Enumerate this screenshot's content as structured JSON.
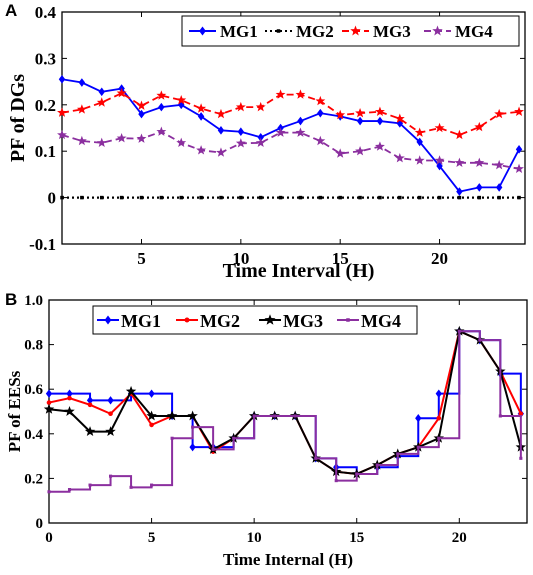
{
  "chart_data": [
    {
      "type": "line",
      "panel_label": "A",
      "xlabel": "Time Interval (H)",
      "ylabel": "PF of DGs",
      "xlim": [
        1,
        24.3
      ],
      "ylim": [
        -0.1,
        0.4
      ],
      "xticks": [
        5,
        10,
        15,
        20
      ],
      "yticks": [
        -0.1,
        0,
        0.1,
        0.2,
        0.3,
        0.4
      ],
      "grid": false,
      "legend_position": "top-right",
      "x": [
        1,
        2,
        3,
        4,
        5,
        6,
        7,
        8,
        9,
        10,
        11,
        12,
        13,
        14,
        15,
        16,
        17,
        18,
        19,
        20,
        21,
        22,
        23,
        24
      ],
      "series": [
        {
          "name": "MG1",
          "color": "#0000ff",
          "marker": "diamond",
          "dash": "solid",
          "values": [
            0.255,
            0.248,
            0.228,
            0.235,
            0.18,
            0.195,
            0.2,
            0.175,
            0.145,
            0.142,
            0.13,
            0.15,
            0.165,
            0.182,
            0.175,
            0.165,
            0.165,
            0.16,
            0.12,
            0.068,
            0.013,
            0.022,
            0.022,
            0.104
          ]
        },
        {
          "name": "MG2",
          "color": "#000000",
          "marker": "square",
          "dash": "dot",
          "values": [
            0,
            0,
            0,
            0,
            0,
            0,
            0,
            0,
            0,
            0,
            0,
            0,
            0,
            0,
            0,
            0,
            0,
            0,
            0,
            0,
            0,
            0,
            0,
            0
          ]
        },
        {
          "name": "MG3",
          "color": "#ff0000",
          "marker": "star",
          "dash": "dash",
          "values": [
            0.183,
            0.19,
            0.205,
            0.225,
            0.198,
            0.22,
            0.21,
            0.192,
            0.18,
            0.195,
            0.195,
            0.222,
            0.222,
            0.208,
            0.178,
            0.182,
            0.185,
            0.17,
            0.14,
            0.15,
            0.135,
            0.152,
            0.18,
            0.185
          ]
        },
        {
          "name": "MG4",
          "color": "#8b2f9f",
          "marker": "star",
          "dash": "dash",
          "values": [
            0.135,
            0.122,
            0.118,
            0.128,
            0.127,
            0.142,
            0.118,
            0.102,
            0.097,
            0.117,
            0.118,
            0.14,
            0.14,
            0.122,
            0.095,
            0.1,
            0.11,
            0.085,
            0.08,
            0.08,
            0.075,
            0.075,
            0.07,
            0.062
          ]
        }
      ]
    },
    {
      "type": "line",
      "panel_label": "B",
      "xlabel": "Time Internal (H)",
      "ylabel": "PF of EESs",
      "xlim": [
        0,
        23.3
      ],
      "ylim": [
        0,
        1.0
      ],
      "xticks": [
        0,
        5,
        10,
        15,
        20
      ],
      "yticks": [
        0,
        0.2,
        0.4,
        0.6,
        0.8,
        1.0
      ],
      "grid": false,
      "legend_position": "top",
      "x": [
        0,
        1,
        2,
        3,
        4,
        5,
        6,
        7,
        8,
        9,
        10,
        11,
        12,
        13,
        14,
        15,
        16,
        17,
        18,
        19,
        20,
        21,
        22,
        23
      ],
      "series": [
        {
          "name": "MG1",
          "color": "#0000ff",
          "marker": "diamond",
          "step": true,
          "values": [
            0.58,
            0.58,
            0.55,
            0.55,
            0.58,
            0.58,
            0.48,
            0.34,
            0.34,
            0.38,
            0.48,
            0.48,
            0.48,
            0.29,
            0.25,
            0.22,
            0.25,
            0.3,
            0.47,
            0.58,
            0.86,
            0.82,
            0.67,
            0.49
          ]
        },
        {
          "name": "MG2",
          "color": "#ff0000",
          "marker": "circle",
          "step": false,
          "values": [
            0.54,
            0.56,
            0.53,
            0.49,
            0.58,
            0.44,
            0.48,
            0.48,
            0.32,
            0.38,
            0.48,
            0.48,
            0.48,
            0.29,
            0.23,
            0.22,
            0.26,
            0.31,
            0.34,
            0.47,
            0.86,
            0.82,
            0.68,
            0.49
          ]
        },
        {
          "name": "MG3",
          "color": "#000000",
          "marker": "star",
          "step": false,
          "values": [
            0.51,
            0.5,
            0.41,
            0.41,
            0.59,
            0.48,
            0.48,
            0.48,
            0.33,
            0.38,
            0.48,
            0.48,
            0.48,
            0.29,
            0.23,
            0.22,
            0.26,
            0.31,
            0.34,
            0.38,
            0.86,
            0.82,
            0.68,
            0.34
          ]
        },
        {
          "name": "MG4",
          "color": "#8b2f9f",
          "marker": "square",
          "step": true,
          "values": [
            0.14,
            0.15,
            0.17,
            0.21,
            0.16,
            0.17,
            0.38,
            0.43,
            0.33,
            0.38,
            0.48,
            0.48,
            0.48,
            0.29,
            0.19,
            0.22,
            0.26,
            0.31,
            0.34,
            0.38,
            0.86,
            0.82,
            0.48,
            0.29
          ]
        }
      ]
    }
  ]
}
